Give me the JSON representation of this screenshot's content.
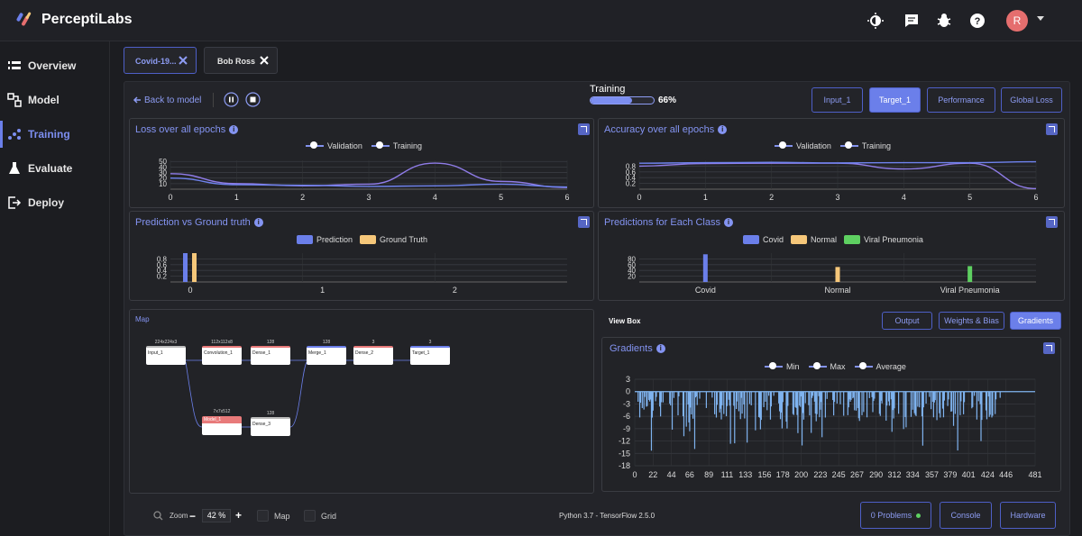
{
  "app": {
    "name": "PerceptiLabs"
  },
  "topbar": {
    "avatar_letter": "R",
    "icons": [
      "theme-toggle-icon",
      "chat-icon",
      "bug-icon",
      "help-icon"
    ]
  },
  "sidebar": {
    "items": [
      {
        "label": "Overview",
        "icon": "overview-icon"
      },
      {
        "label": "Model",
        "icon": "model-icon"
      },
      {
        "label": "Training",
        "icon": "training-icon",
        "active": true
      },
      {
        "label": "Evaluate",
        "icon": "flask-icon"
      },
      {
        "label": "Deploy",
        "icon": "deploy-icon"
      }
    ]
  },
  "tabs": [
    {
      "label": "Covid-19..."
    },
    {
      "label": "Bob Ross"
    }
  ],
  "toolbar": {
    "back_label": "Back to model",
    "training_label": "Training",
    "progress": 0.66,
    "progress_text": "66%",
    "views": [
      {
        "label": "Input_1"
      },
      {
        "label": "Target_1",
        "active": true
      },
      {
        "label": "Performance"
      },
      {
        "label": "Global Loss"
      }
    ]
  },
  "loss_card": {
    "title": "Loss over all epochs",
    "legend": [
      "Validation",
      "Training"
    ],
    "chart_data": {
      "type": "line",
      "x": [
        0,
        1,
        2,
        3,
        4,
        5,
        6
      ],
      "yticks": [
        10,
        20,
        30,
        40,
        50
      ],
      "series": [
        {
          "name": "Validation",
          "values": [
            28,
            10,
            6,
            9,
            47,
            14,
            3
          ]
        },
        {
          "name": "Training",
          "values": [
            20,
            8,
            7,
            5,
            6,
            9,
            4
          ]
        }
      ]
    }
  },
  "accuracy_card": {
    "title": "Accuracy over all epochs",
    "legend": [
      "Validation",
      "Training"
    ],
    "chart_data": {
      "type": "line",
      "x": [
        0,
        1,
        2,
        3,
        4,
        5,
        6
      ],
      "yticks": [
        0.2,
        0.4,
        0.6,
        0.8
      ],
      "series": [
        {
          "name": "Validation",
          "values": [
            0.8,
            0.89,
            0.9,
            0.9,
            0.7,
            0.9,
            0.02
          ]
        },
        {
          "name": "Training",
          "values": [
            0.9,
            0.92,
            0.93,
            0.91,
            0.92,
            0.92,
            0.95
          ]
        }
      ]
    }
  },
  "pred_card": {
    "title": "Prediction vs Ground truth",
    "legend": [
      "Prediction",
      "Ground Truth"
    ],
    "chart_data": {
      "type": "bar",
      "categories": [
        "0",
        "1",
        "2"
      ],
      "yticks": [
        0.2,
        0.4,
        0.6,
        0.8
      ],
      "series": [
        {
          "name": "Prediction",
          "values": [
            1.0,
            0,
            0
          ]
        },
        {
          "name": "Ground Truth",
          "values": [
            1.0,
            0,
            0
          ]
        }
      ]
    }
  },
  "class_card": {
    "title": "Predictions for Each Class",
    "legend": [
      "Covid",
      "Normal",
      "Viral Pneumonia"
    ],
    "chart_data": {
      "type": "bar",
      "categories": [
        "Covid",
        "Normal",
        "Viral Pneumonia"
      ],
      "yticks": [
        20,
        40,
        60,
        80
      ],
      "values": [
        96,
        52,
        55
      ]
    }
  },
  "colors": {
    "accent": "#6b7fea",
    "prediction": "#6b7fea",
    "ground_truth": "#f6c77a",
    "covid": "#6b7fea",
    "normal": "#f6c77a",
    "viral": "#5ed061"
  },
  "map": {
    "title": "Map",
    "nodes": [
      {
        "name": "Input_1",
        "top": "224x224x3"
      },
      {
        "name": "Convolution_1",
        "top": "112x112x8"
      },
      {
        "name": "Dense_1",
        "top": "128"
      },
      {
        "name": "Merge_1",
        "top": "128"
      },
      {
        "name": "Dense_2",
        "top": "3"
      },
      {
        "name": "Target_1",
        "top": "3"
      },
      {
        "name": "Model_1",
        "top": "7x7x512"
      },
      {
        "name": "Dense_3",
        "top": "128"
      }
    ]
  },
  "viewbox": {
    "title": "View Box",
    "buttons": [
      {
        "label": "Output"
      },
      {
        "label": "Weights & Bias"
      },
      {
        "label": "Gradients",
        "active": true
      }
    ]
  },
  "gradients_card": {
    "title": "Gradients",
    "legend": [
      "Min",
      "Max",
      "Average"
    ],
    "chart_data": {
      "type": "bar",
      "x_ticks": [
        0,
        22,
        44,
        66,
        89,
        111,
        133,
        156,
        178,
        200,
        223,
        245,
        267,
        290,
        312,
        334,
        357,
        379,
        401,
        424,
        446,
        481
      ],
      "y_ticks": [
        3,
        0,
        -3,
        -6,
        -9,
        -12,
        -15,
        -18
      ],
      "ylim": [
        -18,
        3
      ]
    }
  },
  "bottom": {
    "zoom_label": "Zoom",
    "zoom_value": "42 %",
    "map_label": "Map",
    "grid_label": "Grid",
    "runtime": "Python 3.7 - TensorFlow 2.5.0",
    "problems_label": "0 Problems",
    "console_label": "Console",
    "hardware_label": "Hardware"
  }
}
